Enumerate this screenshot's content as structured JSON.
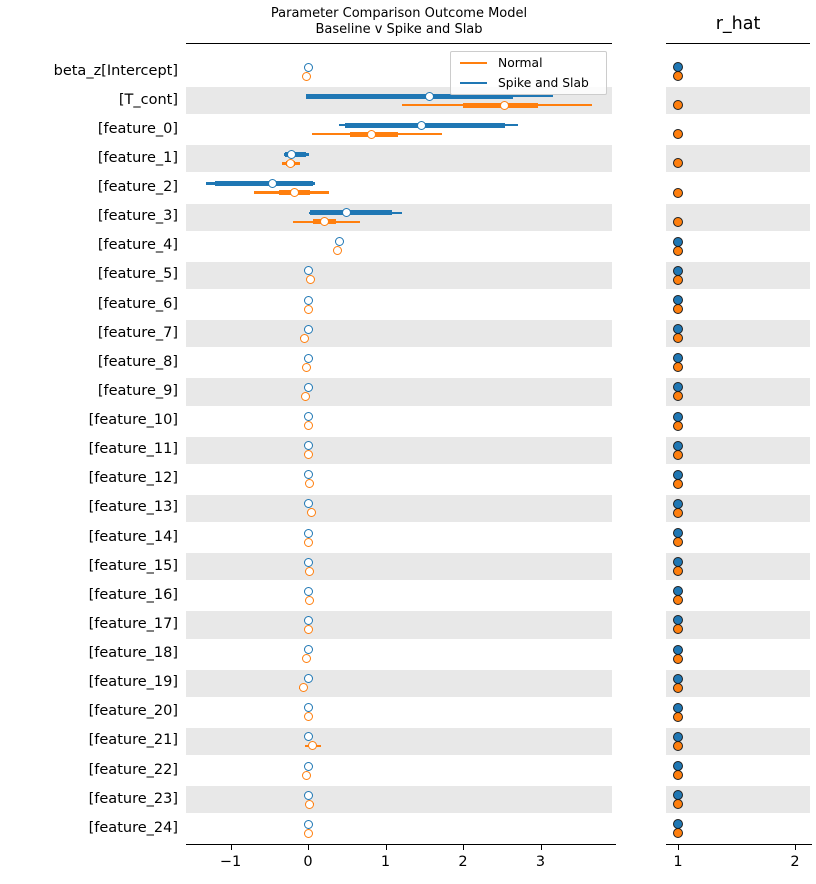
{
  "titles": {
    "main_line1": "Parameter Comparison Outcome Model",
    "main_line2": "Baseline v Spike and Slab",
    "rhat": "r_hat"
  },
  "legend": {
    "items": [
      {
        "label": "Normal",
        "color": "#ff7f0e"
      },
      {
        "label": "Spike and Slab",
        "color": "#1f77b4"
      }
    ]
  },
  "colors": {
    "normal": "#ff7f0e",
    "spike": "#1f77b4",
    "band": "#e8e8e8",
    "spine": "#000000"
  },
  "main_panel": {
    "xticks": [
      {
        "label": "−1",
        "value": -1
      },
      {
        "label": "0",
        "value": 0
      },
      {
        "label": "1",
        "value": 1
      },
      {
        "label": "2",
        "value": 2
      },
      {
        "label": "3",
        "value": 3
      }
    ]
  },
  "rhat_panel": {
    "xticks": [
      {
        "label": "1",
        "value": 1
      },
      {
        "label": "2",
        "value": 2
      }
    ]
  },
  "chart_data": [
    {
      "type": "scatter",
      "title": "Parameter Comparison Outcome Model / Baseline v Spike and Slab",
      "xlabel": "",
      "ylabel": "",
      "xlim": [
        -1.57,
        3.92
      ],
      "grid": false,
      "legend_position": "upper right",
      "series_names": [
        "Normal",
        "Spike and Slab"
      ],
      "marker_style": "open-circle, thin line = outer credible interval, thick line = inner quartile interval",
      "rows": [
        {
          "label": "beta_z[Intercept]",
          "spike": {
            "lo": -0.02,
            "q1": null,
            "median": 0.0,
            "q3": null,
            "hi": 0.02
          },
          "normal": {
            "lo": -0.06,
            "q1": null,
            "median": -0.02,
            "q3": null,
            "hi": 0.02
          }
        },
        {
          "label": "[T_cont]",
          "spike": {
            "lo": -0.03,
            "q1": -0.03,
            "median": 1.57,
            "q3": 2.64,
            "hi": 3.16
          },
          "normal": {
            "lo": 1.21,
            "q1": 2.0,
            "median": 2.54,
            "q3": 2.97,
            "hi": 3.66
          }
        },
        {
          "label": "[feature_0]",
          "spike": {
            "lo": 0.4,
            "q1": 0.48,
            "median": 1.47,
            "q3": 2.54,
            "hi": 2.71
          },
          "normal": {
            "lo": 0.05,
            "q1": 0.54,
            "median": 0.82,
            "q3": 1.16,
            "hi": 1.73
          }
        },
        {
          "label": "[feature_1]",
          "spike": {
            "lo": -0.31,
            "q1": -0.3,
            "median": -0.21,
            "q3": -0.02,
            "hi": 0.01
          },
          "normal": {
            "lo": -0.33,
            "q1": -0.28,
            "median": -0.23,
            "q3": -0.17,
            "hi": -0.1
          }
        },
        {
          "label": "[feature_2]",
          "spike": {
            "lo": -1.32,
            "q1": -1.2,
            "median": -0.46,
            "q3": 0.06,
            "hi": 0.09
          },
          "normal": {
            "lo": -0.7,
            "q1": -0.37,
            "median": -0.18,
            "q3": 0.03,
            "hi": 0.27
          }
        },
        {
          "label": "[feature_3]",
          "spike": {
            "lo": 0.01,
            "q1": 0.02,
            "median": 0.5,
            "q3": 1.08,
            "hi": 1.21
          },
          "normal": {
            "lo": -0.2,
            "q1": 0.07,
            "median": 0.21,
            "q3": 0.36,
            "hi": 0.67
          }
        },
        {
          "label": "[feature_4]",
          "spike": {
            "lo": 0.39,
            "q1": null,
            "median": 0.41,
            "q3": null,
            "hi": 0.43
          },
          "normal": {
            "lo": 0.33,
            "q1": null,
            "median": 0.38,
            "q3": null,
            "hi": 0.43
          }
        },
        {
          "label": "[feature_5]",
          "spike": {
            "lo": -0.01,
            "q1": null,
            "median": 0.01,
            "q3": null,
            "hi": 0.03
          },
          "normal": {
            "lo": -0.01,
            "q1": null,
            "median": 0.03,
            "q3": null,
            "hi": 0.07
          }
        },
        {
          "label": "[feature_6]",
          "spike": {
            "lo": -0.01,
            "q1": null,
            "median": 0.01,
            "q3": null,
            "hi": 0.03
          },
          "normal": {
            "lo": -0.03,
            "q1": null,
            "median": 0.01,
            "q3": null,
            "hi": 0.05
          }
        },
        {
          "label": "[feature_7]",
          "spike": {
            "lo": -0.01,
            "q1": null,
            "median": 0.01,
            "q3": null,
            "hi": 0.03
          },
          "normal": {
            "lo": -0.1,
            "q1": null,
            "median": -0.05,
            "q3": null,
            "hi": -0.01
          }
        },
        {
          "label": "[feature_8]",
          "spike": {
            "lo": -0.02,
            "q1": null,
            "median": 0.0,
            "q3": null,
            "hi": 0.02
          },
          "normal": {
            "lo": -0.06,
            "q1": null,
            "median": -0.02,
            "q3": null,
            "hi": 0.02
          }
        },
        {
          "label": "[feature_9]",
          "spike": {
            "lo": -0.02,
            "q1": null,
            "median": 0.0,
            "q3": null,
            "hi": 0.02
          },
          "normal": {
            "lo": -0.08,
            "q1": null,
            "median": -0.03,
            "q3": null,
            "hi": 0.01
          }
        },
        {
          "label": "[feature_10]",
          "spike": {
            "lo": -0.02,
            "q1": null,
            "median": 0.0,
            "q3": null,
            "hi": 0.02
          },
          "normal": {
            "lo": -0.04,
            "q1": null,
            "median": 0.0,
            "q3": null,
            "hi": 0.04
          }
        },
        {
          "label": "[feature_11]",
          "spike": {
            "lo": -0.02,
            "q1": null,
            "median": 0.0,
            "q3": null,
            "hi": 0.02
          },
          "normal": {
            "lo": -0.03,
            "q1": null,
            "median": 0.01,
            "q3": null,
            "hi": 0.05
          }
        },
        {
          "label": "[feature_12]",
          "spike": {
            "lo": -0.02,
            "q1": null,
            "median": 0.0,
            "q3": null,
            "hi": 0.02
          },
          "normal": {
            "lo": -0.02,
            "q1": null,
            "median": 0.02,
            "q3": null,
            "hi": 0.06
          }
        },
        {
          "label": "[feature_13]",
          "spike": {
            "lo": -0.02,
            "q1": null,
            "median": 0.0,
            "q3": null,
            "hi": 0.02
          },
          "normal": {
            "lo": 0.0,
            "q1": null,
            "median": 0.04,
            "q3": null,
            "hi": 0.09
          }
        },
        {
          "label": "[feature_14]",
          "spike": {
            "lo": -0.02,
            "q1": null,
            "median": 0.0,
            "q3": null,
            "hi": 0.02
          },
          "normal": {
            "lo": -0.03,
            "q1": null,
            "median": 0.01,
            "q3": null,
            "hi": 0.05
          }
        },
        {
          "label": "[feature_15]",
          "spike": {
            "lo": -0.02,
            "q1": null,
            "median": 0.0,
            "q3": null,
            "hi": 0.02
          },
          "normal": {
            "lo": -0.02,
            "q1": null,
            "median": 0.02,
            "q3": null,
            "hi": 0.07
          }
        },
        {
          "label": "[feature_16]",
          "spike": {
            "lo": -0.02,
            "q1": null,
            "median": 0.0,
            "q3": null,
            "hi": 0.02
          },
          "normal": {
            "lo": -0.02,
            "q1": null,
            "median": 0.02,
            "q3": null,
            "hi": 0.06
          }
        },
        {
          "label": "[feature_17]",
          "spike": {
            "lo": -0.02,
            "q1": null,
            "median": 0.0,
            "q3": null,
            "hi": 0.02
          },
          "normal": {
            "lo": -0.04,
            "q1": null,
            "median": 0.0,
            "q3": null,
            "hi": 0.04
          }
        },
        {
          "label": "[feature_18]",
          "spike": {
            "lo": -0.02,
            "q1": null,
            "median": 0.0,
            "q3": null,
            "hi": 0.02
          },
          "normal": {
            "lo": -0.07,
            "q1": null,
            "median": -0.02,
            "q3": null,
            "hi": 0.01
          }
        },
        {
          "label": "[feature_19]",
          "spike": {
            "lo": -0.02,
            "q1": null,
            "median": 0.0,
            "q3": null,
            "hi": 0.02
          },
          "normal": {
            "lo": -0.11,
            "q1": null,
            "median": -0.06,
            "q3": null,
            "hi": -0.01
          }
        },
        {
          "label": "[feature_20]",
          "spike": {
            "lo": -0.02,
            "q1": null,
            "median": 0.0,
            "q3": null,
            "hi": 0.02
          },
          "normal": {
            "lo": -0.04,
            "q1": null,
            "median": 0.0,
            "q3": null,
            "hi": 0.04
          }
        },
        {
          "label": "[feature_21]",
          "spike": {
            "lo": -0.01,
            "q1": null,
            "median": 0.01,
            "q3": null,
            "hi": 0.03
          },
          "normal": {
            "lo": -0.04,
            "q1": null,
            "median": 0.06,
            "q3": null,
            "hi": 0.17
          }
        },
        {
          "label": "[feature_22]",
          "spike": {
            "lo": -0.02,
            "q1": null,
            "median": 0.0,
            "q3": null,
            "hi": 0.02
          },
          "normal": {
            "lo": -0.06,
            "q1": null,
            "median": -0.02,
            "q3": null,
            "hi": 0.02
          }
        },
        {
          "label": "[feature_23]",
          "spike": {
            "lo": -0.02,
            "q1": null,
            "median": 0.0,
            "q3": null,
            "hi": 0.02
          },
          "normal": {
            "lo": -0.03,
            "q1": null,
            "median": 0.02,
            "q3": null,
            "hi": 0.08
          }
        },
        {
          "label": "[feature_24]",
          "spike": {
            "lo": -0.02,
            "q1": null,
            "median": 0.0,
            "q3": null,
            "hi": 0.02
          },
          "normal": {
            "lo": -0.04,
            "q1": null,
            "median": 0.0,
            "q3": null,
            "hi": 0.04
          }
        }
      ]
    },
    {
      "type": "scatter",
      "title": "r_hat",
      "xlim": [
        0.87,
        2.14
      ],
      "grid": false,
      "spike": [
        1.0,
        null,
        null,
        null,
        null,
        null,
        1.0,
        1.0,
        1.0,
        1.0,
        1.0,
        1.0,
        1.0,
        1.0,
        1.0,
        1.0,
        1.0,
        1.0,
        1.0,
        1.0,
        1.0,
        1.0,
        1.0,
        1.0,
        1.0,
        1.0,
        1.0
      ],
      "normal": [
        1.0,
        1.0,
        1.0,
        1.0,
        1.0,
        1.0,
        1.0,
        1.0,
        1.0,
        1.0,
        1.0,
        1.0,
        1.0,
        1.0,
        1.0,
        1.0,
        1.0,
        1.0,
        1.0,
        1.0,
        1.0,
        1.0,
        1.0,
        1.0,
        1.0,
        1.0,
        1.0
      ]
    }
  ]
}
